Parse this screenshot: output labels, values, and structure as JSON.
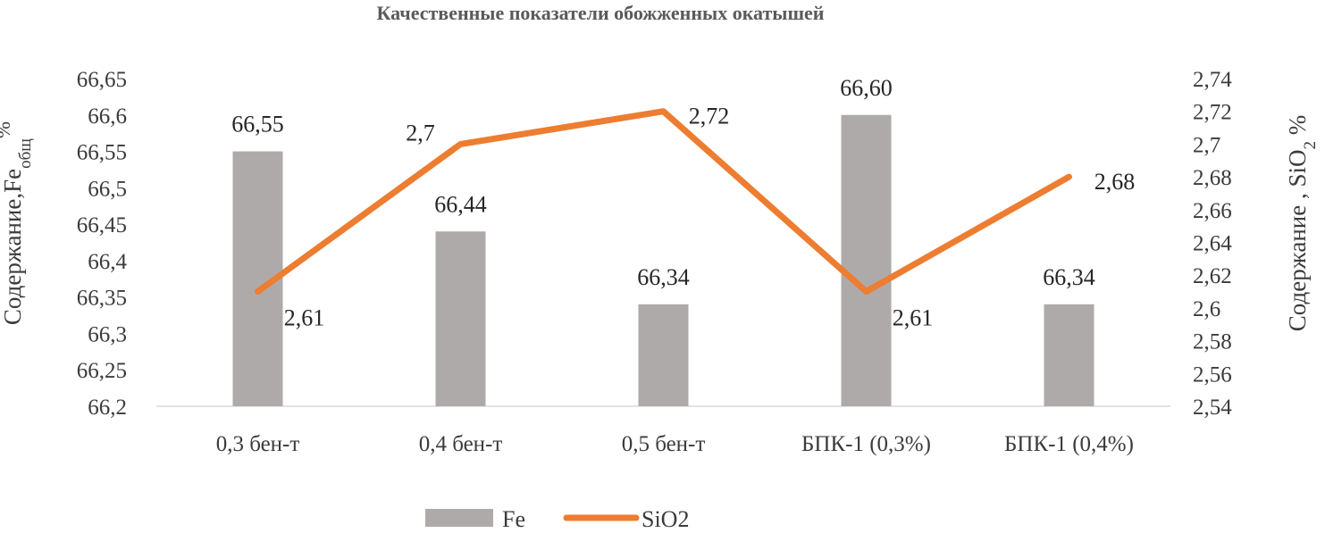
{
  "chart_data": {
    "type": "bar+line",
    "title": "Качественные показатели обожженных окатышей",
    "categories": [
      "0,3 бен-т",
      "0,4 бен-т",
      "0,5 бен-т",
      "БПК-1 (0,3%)",
      "БПК-1 (0,4%)"
    ],
    "series": [
      {
        "name": "Fe",
        "type": "bar",
        "axis": "left",
        "values": [
          66.55,
          66.44,
          66.34,
          66.6,
          66.34
        ],
        "labels": [
          "66,55",
          "66,44",
          "66,34",
          "66,60",
          "66,34"
        ],
        "color": "#aeaaaa"
      },
      {
        "name": "SiO2",
        "type": "line",
        "axis": "right",
        "values": [
          2.61,
          2.7,
          2.72,
          2.61,
          2.68
        ],
        "labels": [
          "2,61",
          "2,7",
          "2,72",
          "2,61",
          "2,68"
        ],
        "color": "#ed7d31"
      }
    ],
    "y_left": {
      "label_main": "Содержание,Fe",
      "label_sub": "общ",
      "label_tail": "%",
      "min": 66.2,
      "max": 66.65,
      "ticks": [
        "66,2",
        "66,25",
        "66,3",
        "66,35",
        "66,4",
        "66,45",
        "66,5",
        "66,55",
        "66,6",
        "66,65"
      ]
    },
    "y_right": {
      "label_main": "Содержание , SiO",
      "label_sub": "2",
      "label_tail": " %",
      "min": 2.54,
      "max": 2.74,
      "ticks": [
        "2,54",
        "2,56",
        "2,58",
        "2,6",
        "2,62",
        "2,64",
        "2,66",
        "2,68",
        "2,7",
        "2,72",
        "2,74"
      ]
    },
    "grid": false,
    "legend": "bottom"
  }
}
